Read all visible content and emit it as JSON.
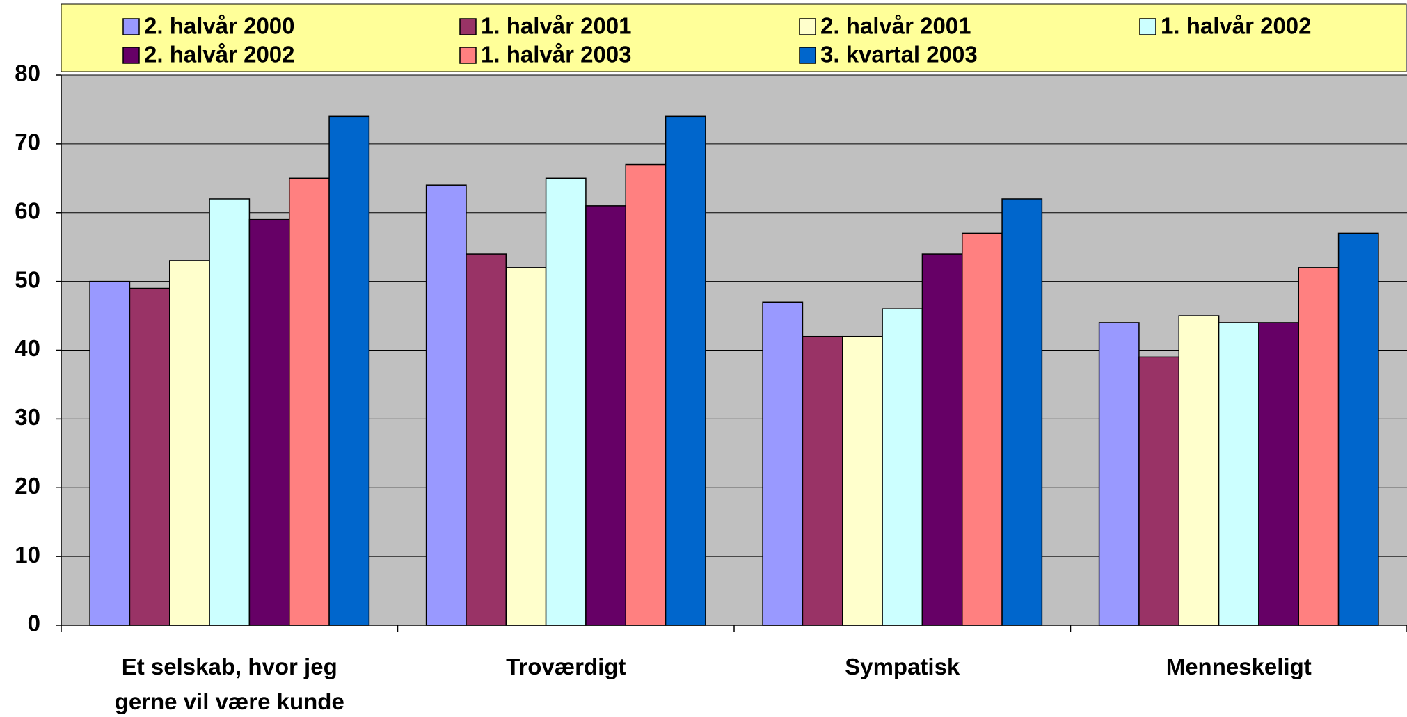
{
  "chart_data": {
    "type": "bar",
    "categories": [
      "Et selskab, hvor jeg gerne vil være kunde",
      "Troværdigt",
      "Sympatisk",
      "Menneskeligt"
    ],
    "series": [
      {
        "name": "2. halvår 2000",
        "color": "#9999ff",
        "values": [
          50,
          64,
          47,
          44
        ]
      },
      {
        "name": "1. halvår 2001",
        "color": "#993366",
        "values": [
          49,
          54,
          42,
          39
        ]
      },
      {
        "name": "2. halvår 2001",
        "color": "#ffffcc",
        "values": [
          53,
          52,
          42,
          45
        ]
      },
      {
        "name": "1. halvår 2002",
        "color": "#ccffff",
        "values": [
          62,
          65,
          46,
          44
        ]
      },
      {
        "name": "2. halvår 2002",
        "color": "#660066",
        "values": [
          59,
          61,
          54,
          44
        ]
      },
      {
        "name": "1. halvår 2003",
        "color": "#ff8080",
        "values": [
          65,
          67,
          57,
          52
        ]
      },
      {
        "name": "3. kvartal 2003",
        "color": "#0066cc",
        "values": [
          74,
          74,
          62,
          57
        ]
      }
    ],
    "ylim": [
      0,
      80
    ],
    "yticks": [
      0,
      10,
      20,
      30,
      40,
      50,
      60,
      70,
      80
    ],
    "grid": true,
    "legend": "top"
  }
}
